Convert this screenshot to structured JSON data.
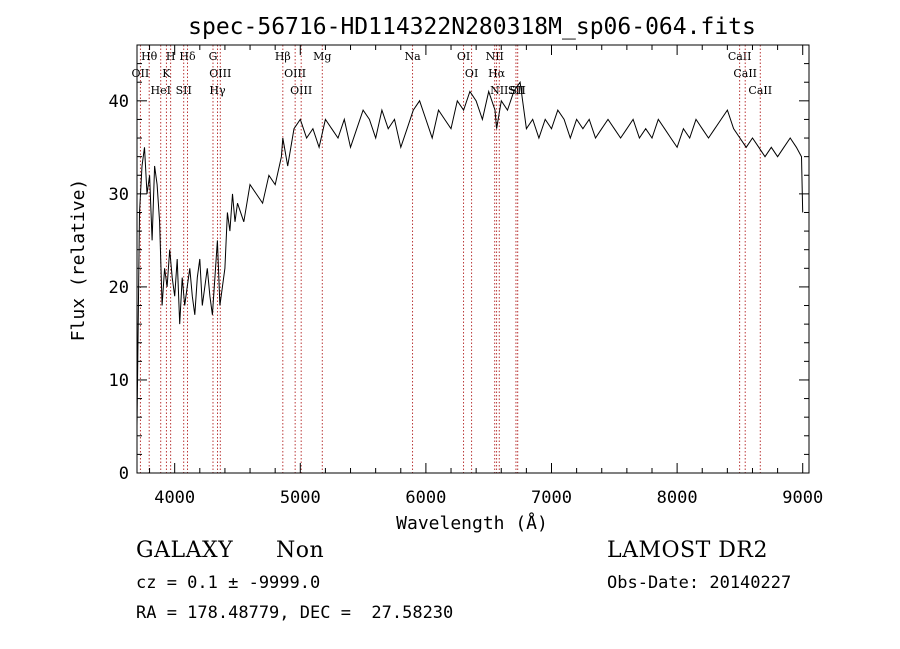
{
  "chart_data": {
    "type": "line",
    "title": "spec-56716-HD114322N280318M_sp06-064.fits",
    "xlabel": "Wavelength (Å)",
    "ylabel": "Flux (relative)",
    "xlim": [
      3700,
      9050
    ],
    "ylim": [
      0,
      46
    ],
    "xticks": [
      4000,
      5000,
      6000,
      7000,
      8000,
      9000
    ],
    "yticks": [
      0,
      10,
      20,
      30,
      40
    ],
    "grid": false,
    "series": [
      {
        "x": [
          3700,
          3720,
          3740,
          3760,
          3780,
          3800,
          3820,
          3840,
          3860,
          3880,
          3900,
          3920,
          3940,
          3960,
          3980,
          4000,
          4020,
          4040,
          4060,
          4080,
          4100,
          4120,
          4140,
          4160,
          4180,
          4200,
          4220,
          4240,
          4260,
          4280,
          4300,
          4320,
          4340,
          4360,
          4380,
          4400,
          4420,
          4440,
          4460,
          4480,
          4500,
          4550,
          4600,
          4650,
          4700,
          4750,
          4800,
          4850,
          4861,
          4900,
          4950,
          5000,
          5050,
          5100,
          5150,
          5200,
          5250,
          5300,
          5350,
          5400,
          5450,
          5500,
          5550,
          5600,
          5650,
          5700,
          5750,
          5800,
          5850,
          5900,
          5950,
          6000,
          6050,
          6100,
          6150,
          6200,
          6250,
          6300,
          6350,
          6400,
          6450,
          6500,
          6550,
          6563,
          6600,
          6650,
          6700,
          6750,
          6800,
          6850,
          6900,
          6950,
          7000,
          7050,
          7100,
          7150,
          7200,
          7250,
          7300,
          7350,
          7400,
          7450,
          7500,
          7550,
          7600,
          7650,
          7700,
          7750,
          7800,
          7850,
          7900,
          7950,
          8000,
          8050,
          8100,
          8150,
          8200,
          8250,
          8300,
          8350,
          8400,
          8450,
          8500,
          8550,
          8600,
          8650,
          8700,
          8750,
          8800,
          8850,
          8900,
          8950,
          8990,
          9000
        ],
        "y": [
          5,
          28,
          33,
          35,
          30,
          32,
          25,
          33,
          31,
          27,
          18,
          22,
          20,
          24,
          21,
          19,
          23,
          16,
          21,
          18,
          20,
          22,
          19,
          17,
          21,
          23,
          18,
          20,
          22,
          19,
          17,
          21,
          25,
          18,
          20,
          22,
          28,
          26,
          30,
          27,
          29,
          27,
          31,
          30,
          29,
          32,
          31,
          34,
          36,
          33,
          37,
          38,
          36,
          37,
          35,
          38,
          37,
          36,
          38,
          35,
          37,
          39,
          38,
          36,
          39,
          37,
          38,
          35,
          37,
          39,
          40,
          38,
          36,
          39,
          38,
          37,
          40,
          39,
          41,
          40,
          38,
          41,
          39,
          37,
          40,
          39,
          41,
          42,
          37,
          38,
          36,
          38,
          37,
          39,
          38,
          36,
          38,
          37,
          38,
          36,
          37,
          38,
          37,
          36,
          37,
          38,
          36,
          37,
          36,
          38,
          37,
          36,
          35,
          37,
          36,
          38,
          37,
          36,
          37,
          38,
          39,
          37,
          36,
          35,
          36,
          35,
          34,
          35,
          34,
          35,
          36,
          35,
          34,
          28
        ]
      }
    ],
    "lines": [
      {
        "label": "Hθ",
        "x": 3797
      },
      {
        "label": "OII",
        "x": 3727
      },
      {
        "label": "H",
        "x": 3968
      },
      {
        "label": "K",
        "x": 3934
      },
      {
        "label": "HeI",
        "x": 3889
      },
      {
        "label": "Hδ",
        "x": 4102
      },
      {
        "label": "SII",
        "x": 4072
      },
      {
        "label": "G",
        "x": 4305
      },
      {
        "label": "OIII",
        "x": 4363
      },
      {
        "label": "Hγ",
        "x": 4341
      },
      {
        "label": "Hβ",
        "x": 4861
      },
      {
        "label": "OIII",
        "x": 4959
      },
      {
        "label": "OIII",
        "x": 5007
      },
      {
        "label": "Mg",
        "x": 5175
      },
      {
        "label": "Na",
        "x": 5894
      },
      {
        "label": "OI",
        "x": 6300
      },
      {
        "label": "OI",
        "x": 6364
      },
      {
        "label": "NII",
        "x": 6548
      },
      {
        "label": "Hα",
        "x": 6563
      },
      {
        "label": "NII",
        "x": 6584
      },
      {
        "label": "SII",
        "x": 6717
      },
      {
        "label": "SII",
        "x": 6731
      },
      {
        "label": "CaII",
        "x": 8498
      },
      {
        "label": "CaII",
        "x": 8542
      },
      {
        "label": "CaII",
        "x": 8662
      }
    ]
  },
  "info": {
    "class": "GALAXY",
    "subclass": "Non",
    "survey": "LAMOST DR2",
    "cz": "cz = 0.1 ± -9999.0",
    "obs_date": "Obs-Date: 20140227",
    "coords": "RA = 178.48779, DEC =  27.58230"
  }
}
